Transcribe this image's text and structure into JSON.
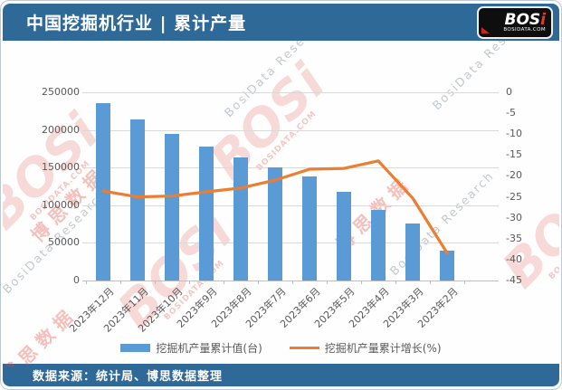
{
  "header": {
    "title": "中国挖掘机行业 | 累计产量",
    "logo": {
      "name_white": "BOS",
      "name_red": "i",
      "site": "BOSIDATA.COM"
    }
  },
  "watermark": {
    "brand": "BOSi",
    "site": "BOSIDATA.COM",
    "brand_cn": "博思数据",
    "research": "BosiData Research"
  },
  "chart_data": {
    "type": "bar",
    "combo": "bar+line dual axis",
    "title": "中国挖掘机行业 | 累计产量",
    "categories": [
      "2023年12月",
      "2023年11月",
      "2023年10月",
      "2023年9月",
      "2023年8月",
      "2023年7月",
      "2023年6月",
      "2023年5月",
      "2023年4月",
      "2023年3月",
      "2023年2月"
    ],
    "series": [
      {
        "name": "挖掘机产量累计值(台)",
        "type": "bar",
        "axis": "left",
        "color": "#5b9bd5",
        "values": [
          236000,
          213500,
          195000,
          178000,
          163000,
          150000,
          138000,
          117200,
          94000,
          75500,
          39500
        ]
      },
      {
        "name": "挖掘机产量累计增长(%)",
        "type": "line",
        "axis": "right",
        "color": "#ed7d31",
        "values": [
          -23.6,
          -25.0,
          -24.8,
          -23.8,
          -22.9,
          -21.0,
          -18.4,
          -18.2,
          -16.4,
          -25.3,
          -38.4
        ]
      }
    ],
    "left_axis": {
      "min": 0,
      "max": 250000,
      "step": 50000,
      "ticks": [
        "250000",
        "200000",
        "150000",
        "100000",
        "50000",
        "0"
      ]
    },
    "right_axis": {
      "min": -45,
      "max": 0,
      "step": 5,
      "ticks": [
        "0",
        "-5",
        "-10",
        "-15",
        "-20",
        "-25",
        "-30",
        "-35",
        "-40",
        "-45"
      ]
    },
    "grid": "horizontal",
    "legend_position": "bottom"
  },
  "footer": {
    "source": "数据来源：统计局、博思数据整理"
  }
}
